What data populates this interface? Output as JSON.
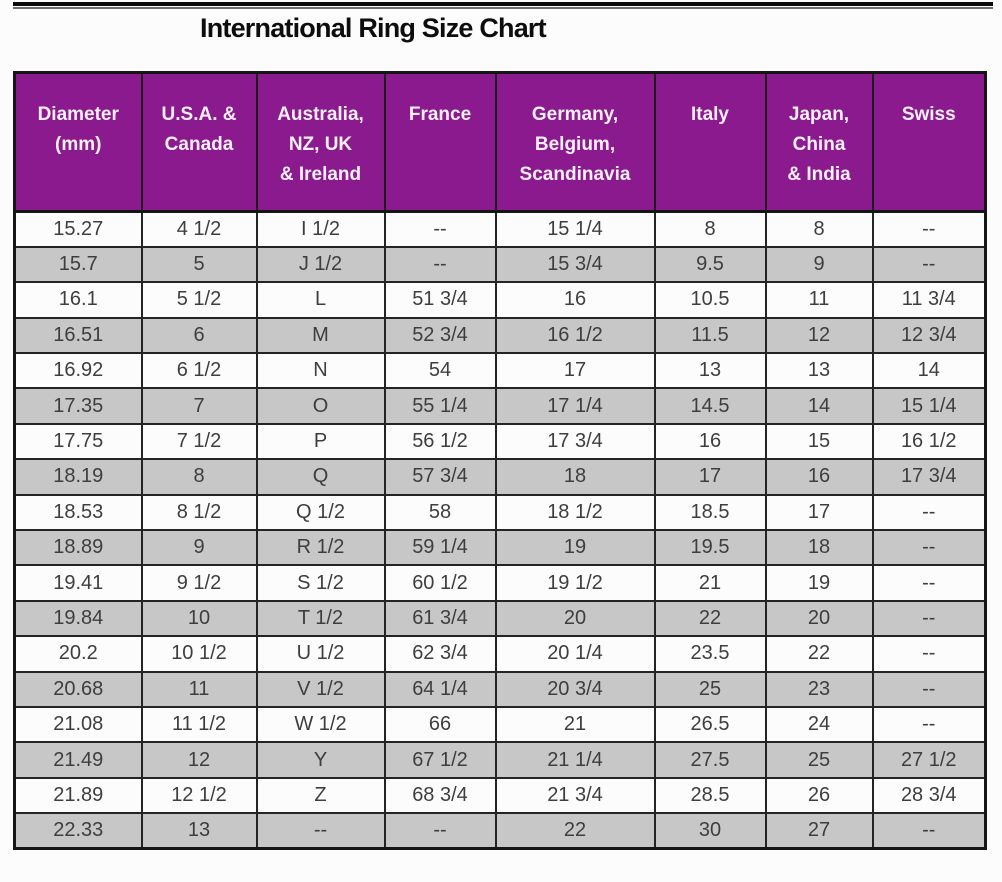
{
  "page": {
    "title": "International Ring Size Chart"
  },
  "chart_data": {
    "type": "table",
    "title": "International Ring Size Chart",
    "columns": [
      "Diameter\n(mm)",
      "U.S.A. &\nCanada",
      "Australia,\nNZ, UK\n& Ireland",
      "France",
      "Germany,\nBelgium,\nScandinavia",
      "Italy",
      "Japan,\nChina\n& India",
      "Swiss"
    ],
    "rows": [
      [
        "15.27",
        "4 1/2",
        "I 1/2",
        "--",
        "15 1/4",
        "8",
        "8",
        "--"
      ],
      [
        "15.7",
        "5",
        "J 1/2",
        "--",
        "15 3/4",
        "9.5",
        "9",
        "--"
      ],
      [
        "16.1",
        "5 1/2",
        "L",
        "51 3/4",
        "16",
        "10.5",
        "11",
        "11 3/4"
      ],
      [
        "16.51",
        "6",
        "M",
        "52 3/4",
        "16 1/2",
        "11.5",
        "12",
        "12 3/4"
      ],
      [
        "16.92",
        "6 1/2",
        "N",
        "54",
        "17",
        "13",
        "13",
        "14"
      ],
      [
        "17.35",
        "7",
        "O",
        "55 1/4",
        "17 1/4",
        "14.5",
        "14",
        "15 1/4"
      ],
      [
        "17.75",
        "7 1/2",
        "P",
        "56 1/2",
        "17 3/4",
        "16",
        "15",
        "16 1/2"
      ],
      [
        "18.19",
        "8",
        "Q",
        "57 3/4",
        "18",
        "17",
        "16",
        "17 3/4"
      ],
      [
        "18.53",
        "8 1/2",
        "Q 1/2",
        "58",
        "18 1/2",
        "18.5",
        "17",
        "--"
      ],
      [
        "18.89",
        "9",
        "R 1/2",
        "59 1/4",
        "19",
        "19.5",
        "18",
        "--"
      ],
      [
        "19.41",
        "9 1/2",
        "S 1/2",
        "60 1/2",
        "19 1/2",
        "21",
        "19",
        "--"
      ],
      [
        "19.84",
        "10",
        "T 1/2",
        "61 3/4",
        "20",
        "22",
        "20",
        "--"
      ],
      [
        "20.2",
        "10 1/2",
        "U 1/2",
        "62 3/4",
        "20 1/4",
        "23.5",
        "22",
        "--"
      ],
      [
        "20.68",
        "11",
        "V 1/2",
        "64 1/4",
        "20 3/4",
        "25",
        "23",
        "--"
      ],
      [
        "21.08",
        "11 1/2",
        "W 1/2",
        "66",
        "21",
        "26.5",
        "24",
        "--"
      ],
      [
        "21.49",
        "12",
        "Y",
        "67 1/2",
        "21 1/4",
        "27.5",
        "25",
        "27 1/2"
      ],
      [
        "21.89",
        "12 1/2",
        "Z",
        "68 3/4",
        "21 3/4",
        "28.5",
        "26",
        "28 3/4"
      ],
      [
        "22.33",
        "13",
        "--",
        "--",
        "22",
        "30",
        "27",
        "--"
      ]
    ]
  },
  "colors": {
    "header_bg": "#8B1A8E",
    "header_text": "#FBF0FB",
    "row_even_bg": "#C7C7C7",
    "row_odd_bg": "#FCFCFC",
    "grid_border": "#242424",
    "cell_text": "#3E3E3E",
    "title_text": "#0D0D0D"
  }
}
